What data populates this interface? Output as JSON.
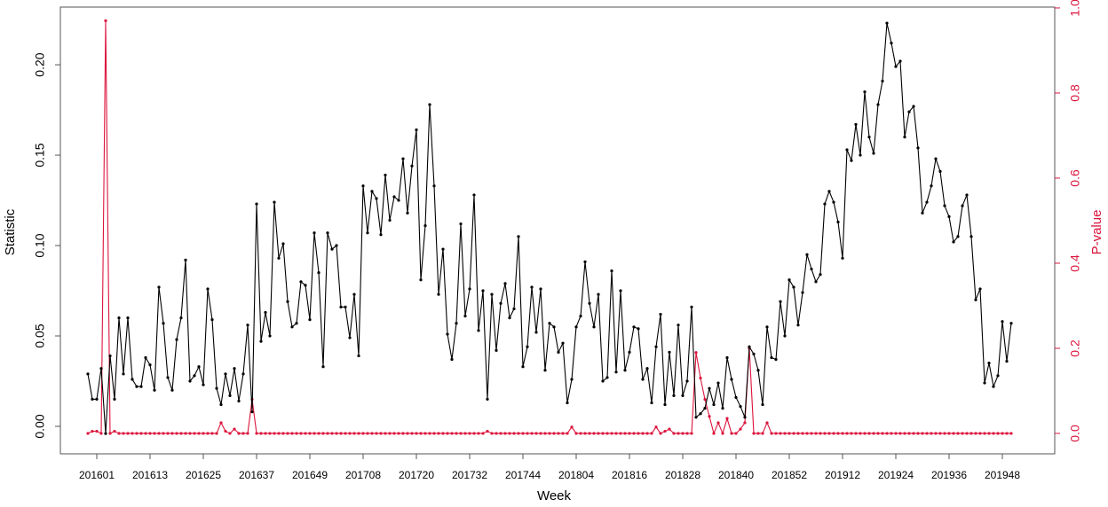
{
  "chart_data": {
    "type": "line",
    "x_label": "Week",
    "y_label": "Statistic",
    "y2_label": "P-value",
    "categories": [
      null,
      null,
      "201601",
      null,
      null,
      null,
      null,
      null,
      null,
      null,
      null,
      null,
      null,
      null,
      "201613",
      null,
      null,
      null,
      null,
      null,
      null,
      null,
      null,
      null,
      null,
      null,
      "201625",
      null,
      null,
      null,
      null,
      null,
      null,
      null,
      null,
      null,
      null,
      null,
      "201637",
      null,
      null,
      null,
      null,
      null,
      null,
      null,
      null,
      null,
      null,
      null,
      "201649",
      null,
      null,
      null,
      null,
      null,
      null,
      null,
      null,
      null,
      null,
      null,
      "201708",
      null,
      null,
      null,
      null,
      null,
      null,
      null,
      null,
      null,
      null,
      null,
      "201720",
      null,
      null,
      null,
      null,
      null,
      null,
      null,
      null,
      null,
      null,
      null,
      "201732",
      null,
      null,
      null,
      null,
      null,
      null,
      null,
      null,
      null,
      null,
      null,
      "201744",
      null,
      null,
      null,
      null,
      null,
      null,
      null,
      null,
      null,
      null,
      null,
      "201804",
      null,
      null,
      null,
      null,
      null,
      null,
      null,
      null,
      null,
      null,
      null,
      "201816",
      null,
      null,
      null,
      null,
      null,
      null,
      null,
      null,
      null,
      null,
      null,
      "201828",
      null,
      null,
      null,
      null,
      null,
      null,
      null,
      null,
      null,
      null,
      null,
      "201840",
      null,
      null,
      null,
      null,
      null,
      null,
      null,
      null,
      null,
      null,
      null,
      "201852",
      null,
      null,
      null,
      null,
      null,
      null,
      null,
      null,
      null,
      null,
      null,
      "201912",
      null,
      null,
      null,
      null,
      null,
      null,
      null,
      null,
      null,
      null,
      null,
      "201924",
      null,
      null,
      null,
      null,
      null,
      null,
      null,
      null,
      null,
      null,
      null,
      "201936",
      null,
      null,
      null,
      null,
      null,
      null,
      null,
      null,
      null,
      null,
      null,
      "201948",
      null,
      null
    ],
    "series": [
      {
        "color": "#000000",
        "values": [
          0.029,
          0.015,
          0.015,
          0.032,
          -0.004,
          0.039,
          0.015,
          0.06,
          0.029,
          0.06,
          0.026,
          0.022,
          0.022,
          0.038,
          0.034,
          0.02,
          0.077,
          0.057,
          0.027,
          0.02,
          0.048,
          0.06,
          0.092,
          0.025,
          0.028,
          0.033,
          0.023,
          0.076,
          0.059,
          0.021,
          0.012,
          0.029,
          0.017,
          0.032,
          0.014,
          0.029,
          0.056,
          0.008,
          0.123,
          0.047,
          0.063,
          0.05,
          0.124,
          0.093,
          0.101,
          0.069,
          0.055,
          0.057,
          0.08,
          0.078,
          0.059,
          0.107,
          0.085,
          0.033,
          0.107,
          0.098,
          0.1,
          0.066,
          0.066,
          0.049,
          0.073,
          0.039,
          0.133,
          0.107,
          0.13,
          0.126,
          0.106,
          0.139,
          0.114,
          0.127,
          0.125,
          0.148,
          0.118,
          0.144,
          0.164,
          0.081,
          0.111,
          0.178,
          0.133,
          0.073,
          0.098,
          0.051,
          0.037,
          0.057,
          0.112,
          0.061,
          0.076,
          0.128,
          0.053,
          0.075,
          0.015,
          0.073,
          0.042,
          0.068,
          0.079,
          0.06,
          0.065,
          0.105,
          0.033,
          0.044,
          0.077,
          0.052,
          0.076,
          0.031,
          0.057,
          0.055,
          0.041,
          0.046,
          0.013,
          0.026,
          0.055,
          0.061,
          0.091,
          0.068,
          0.055,
          0.073,
          0.025,
          0.027,
          0.086,
          0.03,
          0.075,
          0.031,
          0.041,
          0.055,
          0.054,
          0.026,
          0.032,
          0.013,
          0.044,
          0.062,
          0.012,
          0.041,
          0.017,
          0.056,
          0.017,
          0.025,
          0.066,
          0.005,
          0.007,
          0.01,
          0.021,
          0.012,
          0.024,
          0.01,
          0.038,
          0.026,
          0.016,
          0.011,
          0.005,
          0.044,
          0.04,
          0.031,
          0.012,
          0.055,
          0.038,
          0.037,
          0.069,
          0.05,
          0.081,
          0.077,
          0.056,
          0.074,
          0.095,
          0.087,
          0.08,
          0.084,
          0.123,
          0.13,
          0.124,
          0.113,
          0.093,
          0.153,
          0.147,
          0.167,
          0.15,
          0.185,
          0.16,
          0.151,
          0.178,
          0.191,
          0.223,
          0.212,
          0.199,
          0.202,
          0.16,
          0.174,
          0.177,
          0.154,
          0.118,
          0.124,
          0.133,
          0.148,
          0.141,
          0.122,
          0.116,
          0.102,
          0.105,
          0.122,
          0.128,
          0.105,
          0.07,
          0.076,
          0.024,
          0.035,
          0.022,
          0.028,
          0.058,
          0.036,
          0.057
        ]
      },
      {
        "color": "#dc143c",
        "axis": "y2",
        "values": [
          0,
          0.005,
          0.005,
          0,
          0.97,
          0,
          0.005,
          0,
          0,
          0,
          0,
          0,
          0,
          0,
          0,
          0,
          0,
          0,
          0,
          0,
          0,
          0,
          0,
          0,
          0,
          0,
          0,
          0,
          0,
          0,
          0.025,
          0.005,
          0,
          0.01,
          0,
          0,
          0,
          0.08,
          0,
          0,
          0,
          0,
          0,
          0,
          0,
          0,
          0,
          0,
          0,
          0,
          0,
          0,
          0,
          0,
          0,
          0,
          0,
          0,
          0,
          0,
          0,
          0,
          0,
          0,
          0,
          0,
          0,
          0,
          0,
          0,
          0,
          0,
          0,
          0,
          0,
          0,
          0,
          0,
          0,
          0,
          0,
          0,
          0,
          0,
          0,
          0,
          0,
          0,
          0,
          0,
          0.005,
          0,
          0,
          0,
          0,
          0,
          0,
          0,
          0,
          0,
          0,
          0,
          0,
          0,
          0,
          0,
          0,
          0,
          0,
          0.015,
          0,
          0,
          0,
          0,
          0,
          0,
          0,
          0,
          0,
          0,
          0,
          0,
          0,
          0,
          0,
          0,
          0,
          0,
          0.015,
          0,
          0.005,
          0.01,
          0,
          0,
          0,
          0,
          0,
          0.19,
          0.13,
          0.08,
          0.04,
          0,
          0.025,
          0,
          0.035,
          0,
          0,
          0.01,
          0.025,
          0.2,
          0,
          0,
          0,
          0.025,
          0,
          0,
          0,
          0,
          0,
          0,
          0,
          0,
          0,
          0,
          0,
          0,
          0,
          0,
          0,
          0,
          0,
          0,
          0,
          0,
          0,
          0,
          0,
          0,
          0,
          0,
          0,
          0,
          0,
          0,
          0,
          0,
          0,
          0,
          0,
          0,
          0,
          0,
          0,
          0,
          0,
          0,
          0,
          0,
          0,
          0,
          0,
          0,
          0,
          0,
          0,
          0,
          0,
          0,
          0
        ]
      }
    ],
    "ylim": [
      -0.0152,
      0.2319
    ],
    "yticks": [
      {
        "value": 0,
        "label": "0.00"
      },
      {
        "value": 0.05,
        "label": "0.05"
      },
      {
        "value": 0.1,
        "label": "0.10"
      },
      {
        "value": 0.15,
        "label": "0.15"
      },
      {
        "value": 0.2,
        "label": "0.20"
      }
    ],
    "y2lim": [
      -0.048,
      1.002
    ],
    "y2ticks": [
      {
        "value": 0,
        "label": "0.0"
      },
      {
        "value": 0.2,
        "label": "0.2"
      },
      {
        "value": 0.4,
        "label": "0.4"
      },
      {
        "value": 0.6,
        "label": "0.6"
      },
      {
        "value": 0.8,
        "label": "0.8"
      },
      {
        "value": 1,
        "label": "1.0"
      }
    ],
    "y2color": "#dc143c"
  }
}
